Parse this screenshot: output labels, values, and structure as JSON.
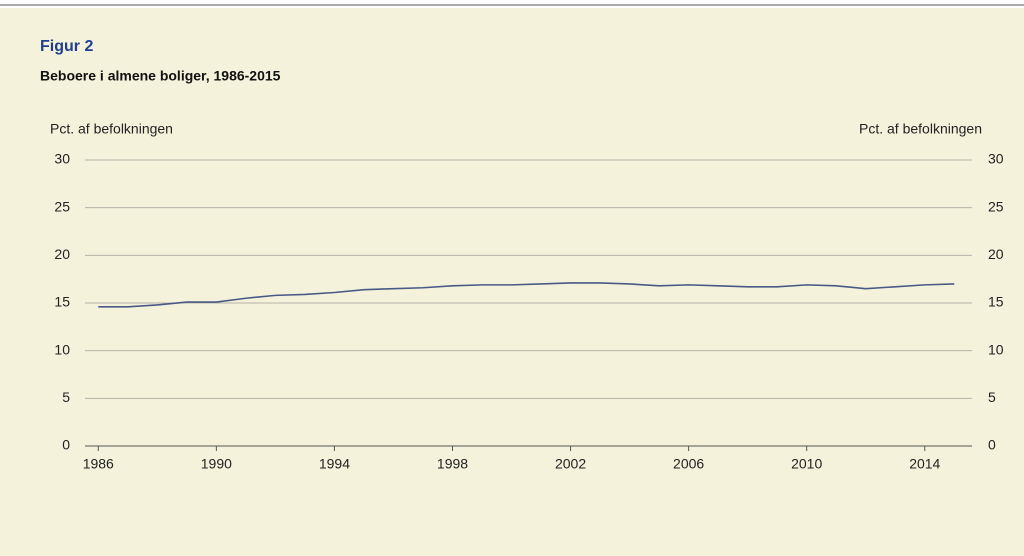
{
  "chart_data": {
    "type": "line",
    "title": "Figur 2",
    "subtitle": "Beboere i almene boliger, 1986-2015",
    "y_label": "Pct. af befolkningen",
    "y2_label": "Pct. af befolkningen",
    "x": [
      1986,
      1987,
      1988,
      1989,
      1990,
      1991,
      1992,
      1993,
      1994,
      1995,
      1996,
      1997,
      1998,
      1999,
      2000,
      2001,
      2002,
      2003,
      2004,
      2005,
      2006,
      2007,
      2008,
      2009,
      2010,
      2011,
      2012,
      2013,
      2014,
      2015
    ],
    "series": [
      {
        "name": "Beboere i almene boliger",
        "color": "#4a5a85",
        "values": [
          14.6,
          14.6,
          14.8,
          15.1,
          15.1,
          15.5,
          15.8,
          15.9,
          16.1,
          16.4,
          16.5,
          16.6,
          16.8,
          16.9,
          16.9,
          17.0,
          17.1,
          17.1,
          17.0,
          16.8,
          16.9,
          16.8,
          16.7,
          16.7,
          16.9,
          16.8,
          16.5,
          16.7,
          16.9,
          17.0
        ]
      }
    ],
    "xlim": [
      1985.55,
      2015.6
    ],
    "xticks": [
      1986,
      1990,
      1994,
      1998,
      2002,
      2006,
      2010,
      2014
    ],
    "ylim": [
      0,
      30
    ],
    "yticks": [
      0,
      5,
      10,
      15,
      20,
      25,
      30
    ],
    "y2lim": [
      0,
      30
    ],
    "y2ticks": [
      0,
      5,
      10,
      15,
      20,
      25,
      30
    ],
    "grid": true
  }
}
